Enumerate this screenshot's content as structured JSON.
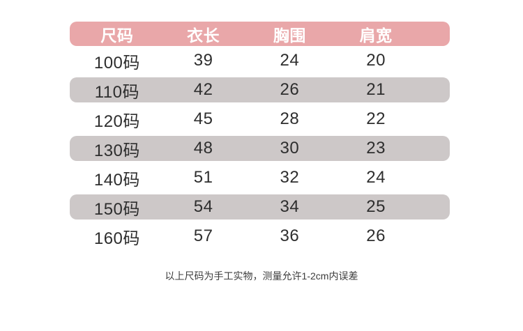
{
  "colors": {
    "header_bg": "#e9a7a9",
    "header_text": "#ffffff",
    "stripe_bg": "#cdc8c8",
    "cell_text": "#2e2e2e",
    "note_text": "#3c3c3c"
  },
  "chart_data": {
    "type": "table",
    "columns": [
      "尺码",
      "衣长",
      "胸围",
      "肩宽"
    ],
    "rows": [
      [
        "100码",
        "39",
        "24",
        "20"
      ],
      [
        "110码",
        "42",
        "26",
        "21"
      ],
      [
        "120码",
        "45",
        "28",
        "22"
      ],
      [
        "130码",
        "48",
        "30",
        "23"
      ],
      [
        "140码",
        "51",
        "32",
        "24"
      ],
      [
        "150码",
        "54",
        "34",
        "25"
      ],
      [
        "160码",
        "57",
        "36",
        "26"
      ]
    ],
    "layout": {
      "striped_row_indexes": [
        1,
        3,
        5
      ],
      "header_style": "pink-rounded-pill",
      "grid": "none"
    },
    "note": "以上尺码为手工实物，测量允许1-2cm内误差"
  }
}
